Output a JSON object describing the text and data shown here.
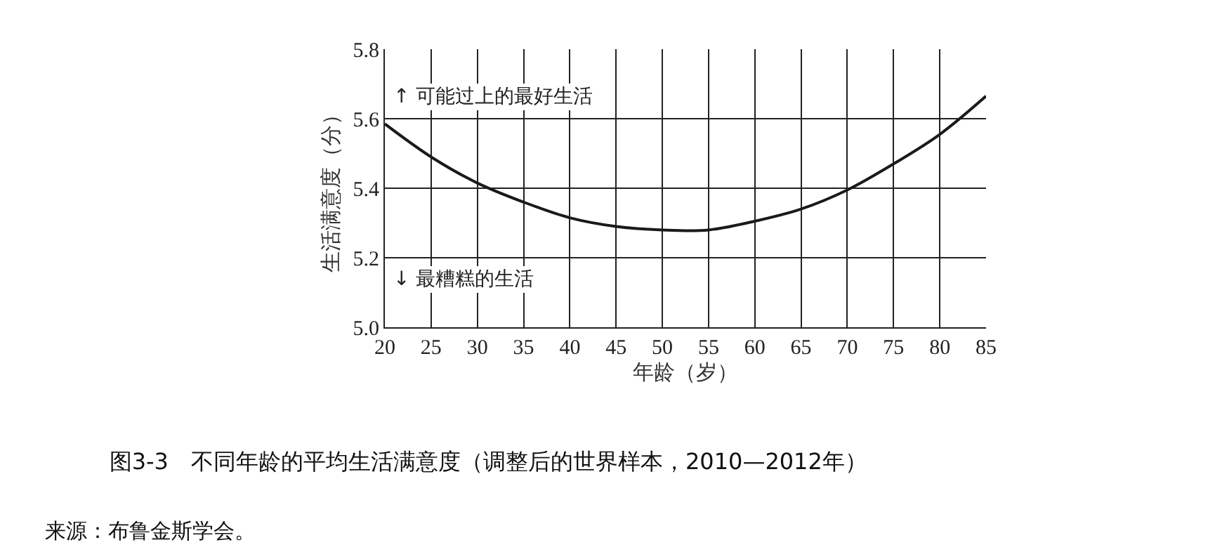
{
  "chart_data": {
    "type": "line",
    "title": "图3-3　不同年龄的平均生活满意度（调整后的世界样本，2010—2012年）",
    "xlabel": "年龄（岁）",
    "ylabel": "生活满意度（分）",
    "x": [
      20,
      25,
      30,
      35,
      40,
      45,
      50,
      55,
      60,
      65,
      70,
      75,
      80,
      85
    ],
    "series": [
      {
        "color": "#1a1a1a",
        "values": [
          5.585,
          5.49,
          5.415,
          5.36,
          5.315,
          5.29,
          5.28,
          5.28,
          5.305,
          5.34,
          5.395,
          5.47,
          5.555,
          5.665
        ]
      }
    ],
    "xlim": [
      20,
      85
    ],
    "xticks": [
      20,
      25,
      30,
      35,
      40,
      45,
      50,
      55,
      60,
      65,
      70,
      75,
      80,
      85
    ],
    "ylim": [
      5.0,
      5.8
    ],
    "yticks": [
      {
        "value": 5.0,
        "label": "5.0"
      },
      {
        "value": 5.2,
        "label": "5.2"
      },
      {
        "value": 5.4,
        "label": "5.4"
      },
      {
        "value": 5.6,
        "label": "5.6"
      },
      {
        "value": 5.8,
        "label": "5.8"
      }
    ],
    "annotations": [
      "↑ 可能过上的最好生活",
      "↓ 最糟糕的生活",
      "来源：布鲁金斯学会。"
    ],
    "grid": true,
    "legend": false,
    "marker": "none",
    "line_style": "solid"
  }
}
